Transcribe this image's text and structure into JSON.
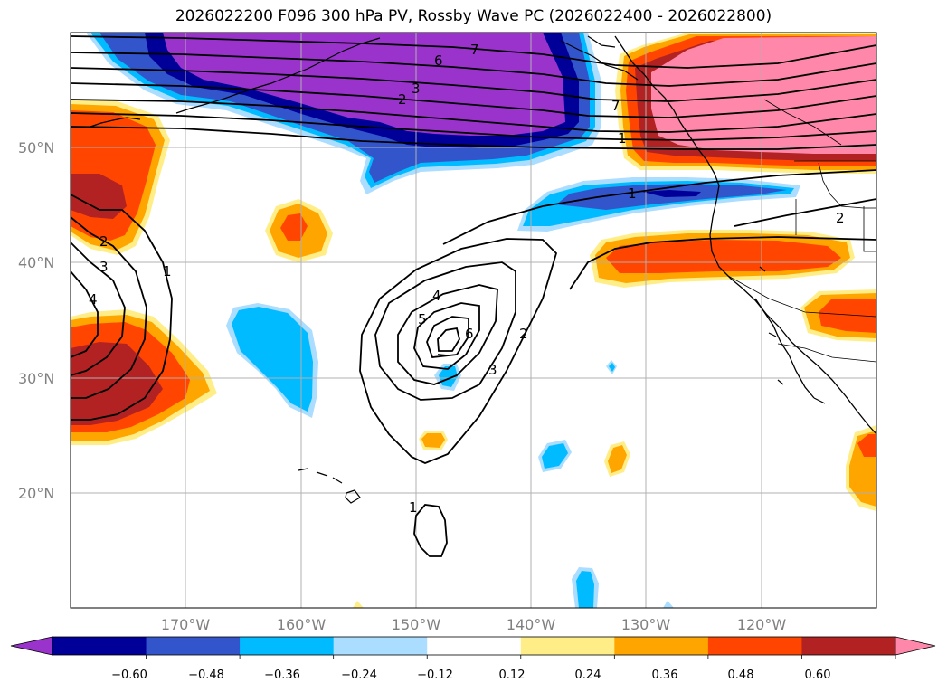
{
  "title": "2026022200 F096 300 hPa PV, Rossby Wave PC (2026022400 - 2026022800)",
  "map": {
    "lat_labels": [
      "50°N",
      "40°N",
      "30°N",
      "20°N"
    ],
    "lon_labels": [
      "170°W",
      "160°W",
      "150°W",
      "140°W",
      "130°W",
      "120°W"
    ],
    "contour_labels": [
      "7",
      "6",
      "3",
      "2",
      "1",
      "1",
      "2",
      "3",
      "4",
      "1",
      "2",
      "4",
      "5",
      "6",
      "3",
      "2",
      "1",
      "7"
    ]
  },
  "colorbar": {
    "ticks": [
      "−0.60",
      "−0.48",
      "−0.36",
      "−0.24",
      "−0.12",
      "0.12",
      "0.24",
      "0.36",
      "0.48",
      "0.60"
    ],
    "colors": [
      "#9933cc",
      "#000099",
      "#3355cc",
      "#00bbff",
      "#aaddff",
      "#ffffff",
      "#ffee88",
      "#ffa500",
      "#ff4500",
      "#b22222",
      "#ff88aa"
    ]
  }
}
